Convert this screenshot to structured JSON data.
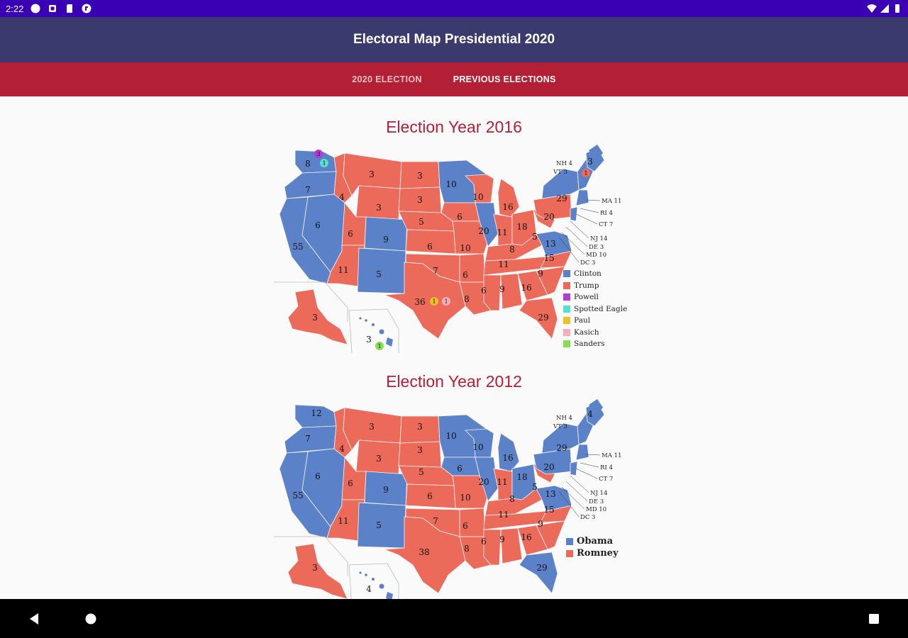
{
  "status_bar": {
    "time": "2:22"
  },
  "app_bar": {
    "title": "Electoral Map Presidential 2020"
  },
  "tabs": [
    {
      "label": "2020 ELECTION",
      "active": false
    },
    {
      "label": "PREVIOUS ELECTIONS",
      "active": true
    }
  ],
  "colors": {
    "blue": "#5b82c9",
    "red": "#ec6a5a",
    "title": "#b32035"
  },
  "elections": [
    {
      "title": "Election Year 2016",
      "legend": [
        {
          "label": "Clinton",
          "color": "#5b82c9"
        },
        {
          "label": "Trump",
          "color": "#ec6a5a"
        },
        {
          "label": "Powell",
          "color": "#b43bd6"
        },
        {
          "label": "Spotted Eagle",
          "color": "#55e0d0"
        },
        {
          "label": "Paul",
          "color": "#f0c020"
        },
        {
          "label": "Kasich",
          "color": "#f4b0b8"
        },
        {
          "label": "Sanders",
          "color": "#88dd55"
        }
      ],
      "northeast_labels": [
        "NH 4",
        "VT 3",
        "MA 11",
        "RI 4",
        "CT 7",
        "NJ 14",
        "DE 3",
        "MD 10",
        "DC 3"
      ],
      "numbers": {
        "WA": "8",
        "WA_faithless_powell": "3",
        "WA_faithless_eagle": "1",
        "OR": "7",
        "CA": "55",
        "NV": "6",
        "ID": "4",
        "MT": "3",
        "WY": "3",
        "UT": "6",
        "AZ": "11",
        "CO": "9",
        "NM": "5",
        "ND": "3",
        "SD": "3",
        "NE": "5",
        "KS": "6",
        "OK": "7",
        "TX": "36",
        "TX_faithless_paul": "1",
        "TX_faithless_kasich": "1",
        "MN": "10",
        "IA": "6",
        "MO": "10",
        "AR": "6",
        "LA": "8",
        "WI": "10",
        "IL": "20",
        "MI": "16",
        "IN": "11",
        "OH": "18",
        "KY": "8",
        "TN": "11",
        "MS": "6",
        "AL": "9",
        "GA": "16",
        "FL": "29",
        "SC": "9",
        "NC": "15",
        "VA": "13",
        "WV": "5",
        "PA": "20",
        "NY": "29",
        "ME": "3",
        "ME_trump": "1",
        "AK": "3",
        "HI": "3",
        "HI_faithless_sanders": "1"
      }
    },
    {
      "title": "Election Year 2012",
      "legend": [
        {
          "label": "Obama",
          "color": "#5b82c9"
        },
        {
          "label": "Romney",
          "color": "#ec6a5a"
        }
      ],
      "northeast_labels": [
        "NH 4",
        "VT 3",
        "MA 11",
        "RI 4",
        "CT 7",
        "NJ 14",
        "DE 3",
        "MD 10",
        "DC 3"
      ],
      "numbers": {
        "WA": "12",
        "OR": "7",
        "CA": "55",
        "NV": "6",
        "ID": "4",
        "MT": "3",
        "WY": "3",
        "UT": "6",
        "AZ": "11",
        "CO": "9",
        "NM": "5",
        "ND": "3",
        "SD": "3",
        "NE": "5",
        "KS": "6",
        "OK": "7",
        "TX": "38",
        "MN": "10",
        "IA": "6",
        "MO": "10",
        "AR": "6",
        "LA": "8",
        "WI": "10",
        "IL": "20",
        "MI": "16",
        "IN": "11",
        "OH": "18",
        "KY": "8",
        "TN": "11",
        "MS": "6",
        "AL": "9",
        "GA": "16",
        "FL": "29",
        "SC": "9",
        "NC": "15",
        "VA": "13",
        "WV": "5",
        "PA": "20",
        "NY": "29",
        "ME": "4",
        "AK": "3",
        "HI": "4"
      }
    }
  ]
}
